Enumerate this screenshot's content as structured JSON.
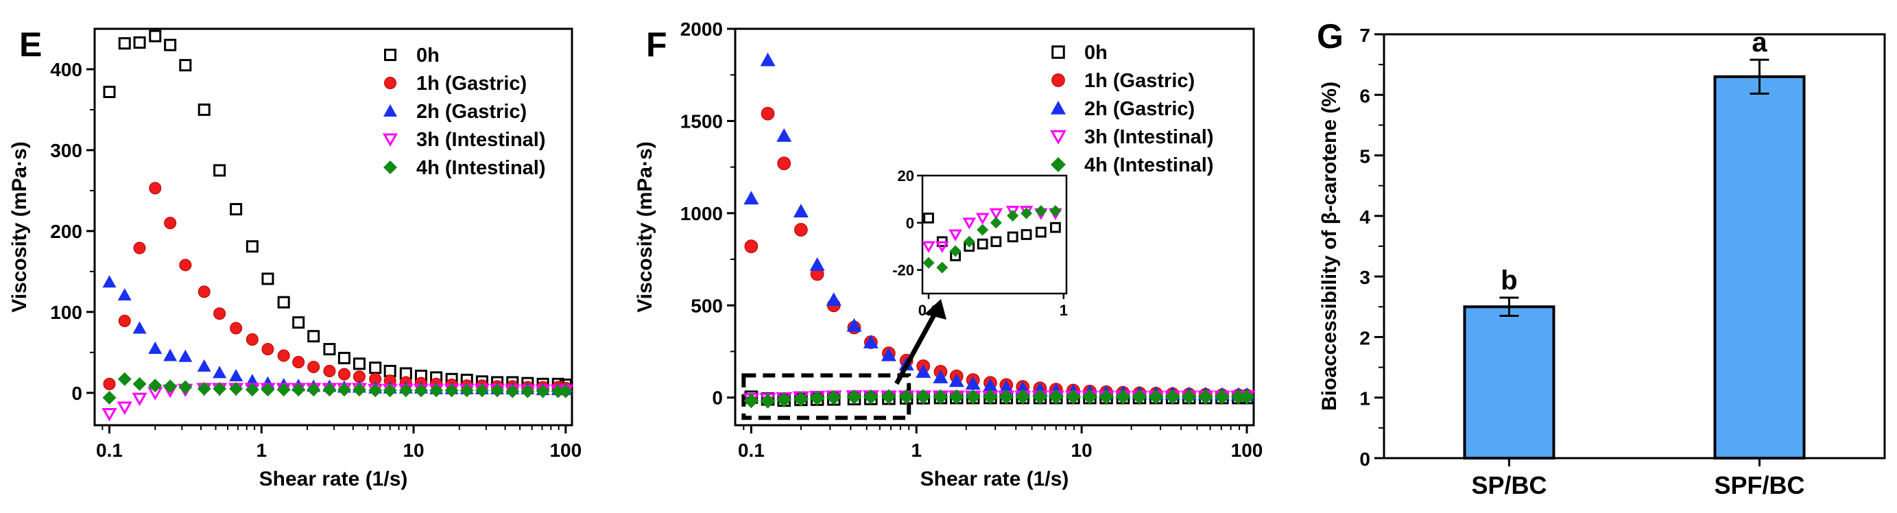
{
  "colors": {
    "0h": "#000000",
    "1h": "#ee1c1c",
    "2h": "#1a2ff0",
    "3h": "#ff00ff",
    "4h": "#138a13",
    "bar": "#55a8f5"
  },
  "chart_data": [
    {
      "panel": "E",
      "type": "scatter",
      "xscale": "log",
      "xlabel": "Shear rate (1/s)",
      "ylabel": "Viscosity (mPa·s)",
      "xlim": [
        0.08,
        110
      ],
      "ylim": [
        -40,
        450
      ],
      "xticks": [
        {
          "v": 0.1,
          "label": "0.1"
        },
        {
          "v": 1,
          "label": "1"
        },
        {
          "v": 10,
          "label": "10"
        },
        {
          "v": 100,
          "label": "100"
        }
      ],
      "yticks": [
        {
          "v": 0,
          "label": "0"
        },
        {
          "v": 100,
          "label": "100"
        },
        {
          "v": 200,
          "label": "200"
        },
        {
          "v": 300,
          "label": "300"
        },
        {
          "v": 400,
          "label": "400"
        }
      ],
      "legend_position": "top-right",
      "series": [
        {
          "name": "0h",
          "marker": "open-square",
          "x": [
            0.1,
            0.126,
            0.158,
            0.2,
            0.251,
            0.316,
            0.42,
            0.53,
            0.68,
            0.87,
            1.1,
            1.4,
            1.75,
            2.2,
            2.8,
            3.5,
            4.4,
            5.6,
            7,
            8.9,
            11.2,
            14.1,
            17.8,
            22.4,
            28.2,
            35.5,
            44.7,
            56.2,
            70.8,
            89.1,
            100
          ],
          "y": [
            372,
            432,
            433,
            441,
            430,
            405,
            350,
            275,
            227,
            181,
            141,
            112,
            87,
            70,
            54,
            43,
            36,
            31,
            27,
            24,
            21,
            19,
            17,
            16,
            14,
            13,
            13,
            12,
            11,
            11,
            10
          ]
        },
        {
          "name": "1h (Gastric)",
          "marker": "filled-circle",
          "x": [
            0.1,
            0.126,
            0.158,
            0.2,
            0.251,
            0.316,
            0.42,
            0.53,
            0.68,
            0.87,
            1.1,
            1.4,
            1.75,
            2.2,
            2.8,
            3.5,
            4.4,
            5.6,
            7,
            8.9,
            11.2,
            14.1,
            17.8,
            22.4,
            28.2,
            35.5,
            44.7,
            56.2,
            70.8,
            89.1,
            100
          ],
          "y": [
            11,
            89,
            179,
            253,
            210,
            158,
            125,
            98,
            80,
            66,
            54,
            46,
            38,
            32,
            27,
            23,
            20,
            17,
            15,
            13,
            12,
            11,
            10,
            9,
            9,
            8,
            8,
            7,
            7,
            7,
            6
          ]
        },
        {
          "name": "2h (Gastric)",
          "marker": "filled-triangle-up",
          "x": [
            0.1,
            0.126,
            0.158,
            0.2,
            0.251,
            0.316,
            0.42,
            0.53,
            0.68,
            0.87,
            1.1,
            1.4,
            1.75,
            2.2,
            2.8,
            3.5,
            4.4,
            5.6,
            7,
            8.9,
            11.2,
            14.1,
            17.8,
            22.4,
            28.2,
            35.5,
            44.7,
            56.2,
            70.8,
            89.1,
            100
          ],
          "y": [
            137,
            121,
            80,
            55,
            46,
            45,
            33,
            25,
            21,
            15,
            12,
            10,
            9,
            8,
            8,
            7,
            7,
            6,
            6,
            6,
            6,
            5,
            5,
            5,
            5,
            5,
            5,
            5,
            4,
            4,
            4
          ]
        },
        {
          "name": "3h (Intestinal)",
          "marker": "open-triangle-down",
          "x": [
            0.1,
            0.126,
            0.158,
            0.2,
            0.251,
            0.316,
            0.42,
            0.53,
            0.68,
            0.87,
            1.1,
            1.4,
            1.75,
            2.2,
            2.8,
            3.5,
            4.4,
            5.6,
            7,
            8.9,
            11.2,
            14.1,
            17.8,
            22.4,
            28.2,
            35.5,
            44.7,
            56.2,
            70.8,
            89.1,
            100
          ],
          "y": [
            -26,
            -18,
            -7,
            0,
            3,
            4,
            5,
            5,
            5,
            5,
            5,
            5,
            5,
            5,
            5,
            5,
            5,
            4,
            4,
            4,
            4,
            4,
            4,
            4,
            4,
            4,
            3,
            3,
            3,
            3,
            3
          ]
        },
        {
          "name": "4h (Intestinal)",
          "marker": "filled-diamond",
          "x": [
            0.1,
            0.126,
            0.158,
            0.2,
            0.251,
            0.316,
            0.42,
            0.53,
            0.68,
            0.87,
            1.1,
            1.4,
            1.75,
            2.2,
            2.8,
            3.5,
            4.4,
            5.6,
            7,
            8.9,
            11.2,
            14.1,
            17.8,
            22.4,
            28.2,
            35.5,
            44.7,
            56.2,
            70.8,
            89.1,
            100
          ],
          "y": [
            -6,
            17,
            11,
            9,
            8,
            7,
            5,
            5,
            5,
            4,
            4,
            4,
            4,
            4,
            4,
            4,
            4,
            3,
            3,
            3,
            3,
            3,
            3,
            3,
            3,
            3,
            2,
            2,
            2,
            2,
            2
          ]
        }
      ]
    },
    {
      "panel": "F",
      "type": "scatter",
      "xscale": "log",
      "xlabel": "Shear rate (1/s)",
      "ylabel": "Viscosity (mPa·s)",
      "xlim": [
        0.08,
        110
      ],
      "ylim": [
        -150,
        2000
      ],
      "xticks": [
        {
          "v": 0.1,
          "label": "0.1"
        },
        {
          "v": 1,
          "label": "1"
        },
        {
          "v": 10,
          "label": "10"
        },
        {
          "v": 100,
          "label": "100"
        }
      ],
      "yticks": [
        {
          "v": 0,
          "label": "0"
        },
        {
          "v": 500,
          "label": "500"
        },
        {
          "v": 1000,
          "label": "1000"
        },
        {
          "v": 1500,
          "label": "1500"
        },
        {
          "v": 2000,
          "label": "2000"
        }
      ],
      "legend_position": "top-right",
      "highlight_region": {
        "x": [
          0.09,
          0.9
        ],
        "y": [
          -110,
          120
        ]
      },
      "series": [
        {
          "name": "0h",
          "marker": "open-square",
          "x": [
            0.1,
            0.126,
            0.158,
            0.2,
            0.251,
            0.316,
            0.42,
            0.53,
            0.68,
            0.87,
            1.1,
            1.4,
            1.75,
            2.2,
            2.8,
            3.5,
            4.4,
            5.6,
            7,
            8.9,
            11.2,
            14.1,
            17.8,
            22.4,
            28.2,
            35.5,
            44.7,
            56.2,
            70.8,
            89.1,
            100
          ],
          "y": [
            2,
            -8,
            -14,
            -10,
            -9,
            -8,
            -6,
            -5,
            -4,
            -2,
            -1,
            0,
            0,
            0,
            0,
            0,
            0,
            0,
            0,
            0,
            0,
            0,
            0,
            0,
            0,
            0,
            0,
            0,
            0,
            0,
            0
          ]
        },
        {
          "name": "1h (Gastric)",
          "marker": "filled-circle",
          "x": [
            0.1,
            0.126,
            0.158,
            0.2,
            0.251,
            0.316,
            0.42,
            0.53,
            0.68,
            0.87,
            1.1,
            1.4,
            1.75,
            2.2,
            2.8,
            3.5,
            4.4,
            5.6,
            7,
            8.9,
            11.2,
            14.1,
            17.8,
            22.4,
            28.2,
            35.5,
            44.7,
            56.2,
            70.8,
            89.1,
            100
          ],
          "y": [
            820,
            1540,
            1270,
            910,
            670,
            500,
            380,
            300,
            240,
            200,
            170,
            140,
            115,
            95,
            80,
            68,
            58,
            50,
            43,
            38,
            33,
            29,
            26,
            23,
            21,
            19,
            17,
            15,
            13,
            12,
            11
          ]
        },
        {
          "name": "2h (Gastric)",
          "marker": "filled-triangle-up",
          "x": [
            0.1,
            0.126,
            0.158,
            0.2,
            0.251,
            0.316,
            0.42,
            0.53,
            0.68,
            0.87,
            1.1,
            1.4,
            1.75,
            2.2,
            2.8,
            3.5,
            4.4,
            5.6,
            7,
            8.9,
            11.2,
            14.1,
            17.8,
            22.4,
            28.2,
            35.5,
            44.7,
            56.2,
            70.8,
            89.1,
            100
          ],
          "y": [
            1080,
            1830,
            1420,
            1010,
            720,
            530,
            390,
            300,
            230,
            180,
            140,
            110,
            90,
            75,
            64,
            55,
            48,
            42,
            37,
            33,
            30,
            27,
            25,
            23,
            21,
            20,
            19,
            18,
            17,
            16,
            15
          ]
        },
        {
          "name": "3h (Intestinal)",
          "marker": "open-triangle-down",
          "x": [
            0.1,
            0.126,
            0.158,
            0.2,
            0.251,
            0.316,
            0.42,
            0.53,
            0.68,
            0.87,
            1.1,
            1.4,
            1.75,
            2.2,
            2.8,
            3.5,
            4.4,
            5.6,
            7,
            8.9,
            11.2,
            14.1,
            17.8,
            22.4,
            28.2,
            35.5,
            44.7,
            56.2,
            70.8,
            89.1,
            100
          ],
          "y": [
            -10,
            -10,
            -5,
            0,
            2,
            4,
            5,
            5,
            4,
            4,
            4,
            4,
            4,
            3,
            3,
            3,
            3,
            3,
            3,
            3,
            3,
            3,
            3,
            3,
            3,
            3,
            3,
            3,
            3,
            3,
            3
          ]
        },
        {
          "name": "4h (Intestinal)",
          "marker": "filled-diamond",
          "x": [
            0.1,
            0.126,
            0.158,
            0.2,
            0.251,
            0.316,
            0.42,
            0.53,
            0.68,
            0.87,
            1.1,
            1.4,
            1.75,
            2.2,
            2.8,
            3.5,
            4.4,
            5.6,
            7,
            8.9,
            11.2,
            14.1,
            17.8,
            22.4,
            28.2,
            35.5,
            44.7,
            56.2,
            70.8,
            89.1,
            100
          ],
          "y": [
            -17,
            -19,
            -12,
            -8,
            -3,
            0,
            3,
            4,
            5,
            5,
            5,
            4,
            4,
            4,
            4,
            4,
            4,
            4,
            4,
            4,
            4,
            4,
            4,
            4,
            4,
            4,
            4,
            4,
            4,
            4,
            4
          ]
        }
      ],
      "inset": {
        "xlim": [
          0.09,
          1.05
        ],
        "ylim": [
          -30,
          20
        ],
        "xticks": [
          {
            "v": 0.1,
            "label": "0.1"
          },
          {
            "v": 1,
            "label": "1"
          }
        ],
        "yticks": [
          {
            "v": 20,
            "label": "20"
          },
          {
            "v": 0,
            "label": "0"
          },
          {
            "v": -20,
            "label": "-20"
          }
        ]
      }
    },
    {
      "panel": "G",
      "type": "bar",
      "ylabel": "Bioaccessibility of β-carotene (%)",
      "ylim": [
        0,
        7
      ],
      "yticks": [
        {
          "v": 0,
          "label": "0"
        },
        {
          "v": 1,
          "label": "1"
        },
        {
          "v": 2,
          "label": "2"
        },
        {
          "v": 3,
          "label": "3"
        },
        {
          "v": 4,
          "label": "4"
        },
        {
          "v": 5,
          "label": "5"
        },
        {
          "v": 6,
          "label": "6"
        },
        {
          "v": 7,
          "label": "7"
        }
      ],
      "categories": [
        "SP/BC",
        "SPF/BC"
      ],
      "values": [
        2.5,
        6.3
      ],
      "errors": [
        0.15,
        0.28
      ],
      "significance_labels": [
        "b",
        "a"
      ]
    }
  ]
}
